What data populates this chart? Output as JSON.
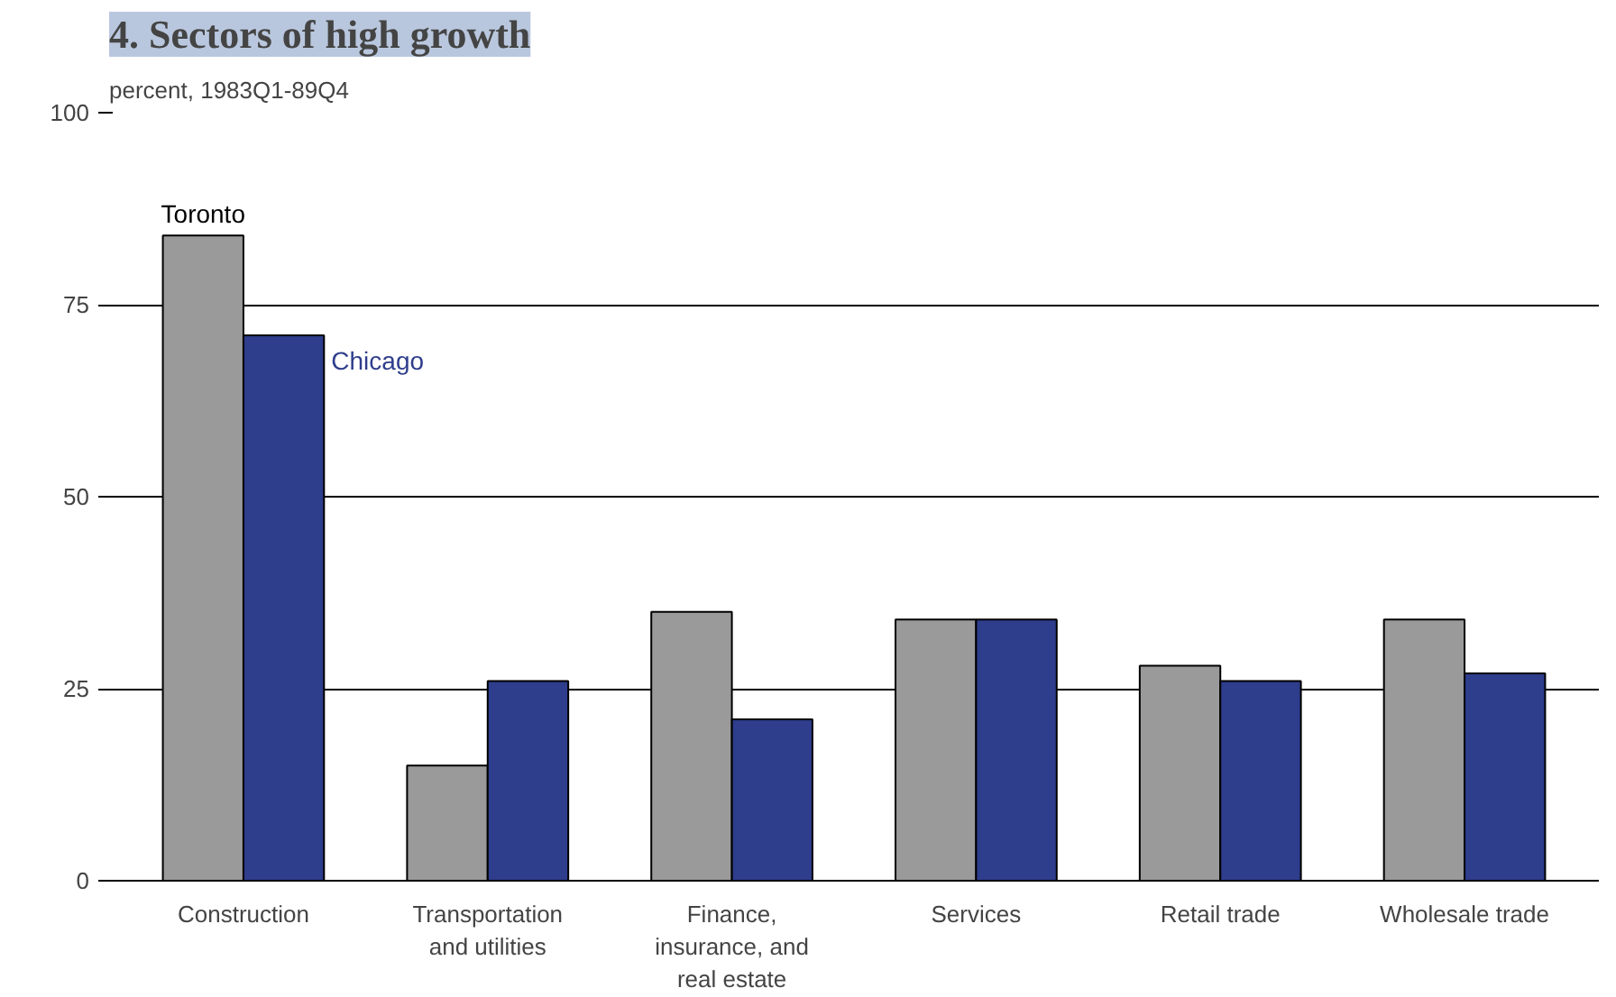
{
  "chart_data": {
    "type": "bar",
    "title": "4. Sectors of high growth",
    "ylabel": "percent, 1983Q1-89Q4",
    "categories": [
      "Construction",
      "Transportation and utilities",
      "Finance, insurance, and real estate",
      "Services",
      "Retail trade",
      "Wholesale trade"
    ],
    "series": [
      {
        "name": "Toronto",
        "color": "#9a9a9a",
        "values": [
          84,
          15,
          35,
          34,
          28,
          34
        ]
      },
      {
        "name": "Chicago",
        "color": "#2e3d8c",
        "values": [
          71,
          26,
          21,
          34,
          26,
          27
        ]
      }
    ],
    "ylim": [
      0,
      100
    ],
    "yticks": [
      0,
      25,
      50,
      75,
      100
    ],
    "grid": "y"
  }
}
